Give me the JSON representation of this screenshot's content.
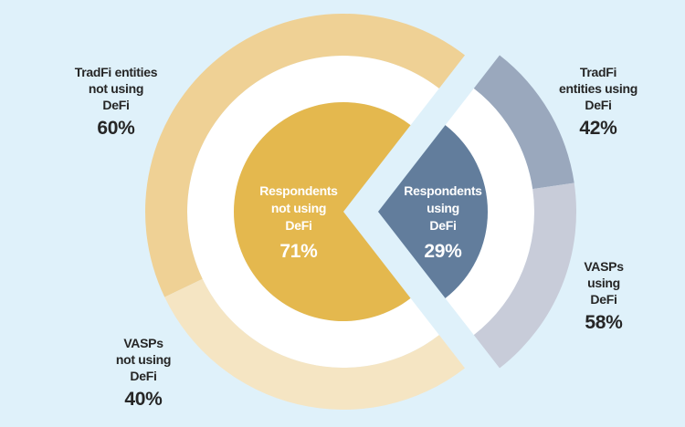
{
  "chart_data": {
    "type": "pie",
    "title": "",
    "inner": [
      {
        "label": "Respondents\nnot using\nDeFi",
        "value": 71,
        "display": "71%",
        "color": "#e4b84e"
      },
      {
        "label": "Respondents\nusing\nDeFi",
        "value": 29,
        "display": "29%",
        "color": "#627d9c"
      }
    ],
    "outer": {
      "not_using": [
        {
          "label": "TradFi entities\nnot using\nDeFi",
          "value": 60,
          "display": "60%",
          "color": "#efd195"
        },
        {
          "label": "VASPs\nnot using\nDeFi",
          "value": 40,
          "display": "40%",
          "color": "#f5e5c3"
        }
      ],
      "using": [
        {
          "label": "TradFi\nentities using\nDeFi",
          "value": 42,
          "display": "42%",
          "color": "#9aa8bd"
        },
        {
          "label": "VASPs\nusing\nDeFi",
          "value": 58,
          "display": "58%",
          "color": "#c8ccd9"
        }
      ]
    },
    "background": "#dff1fa"
  }
}
